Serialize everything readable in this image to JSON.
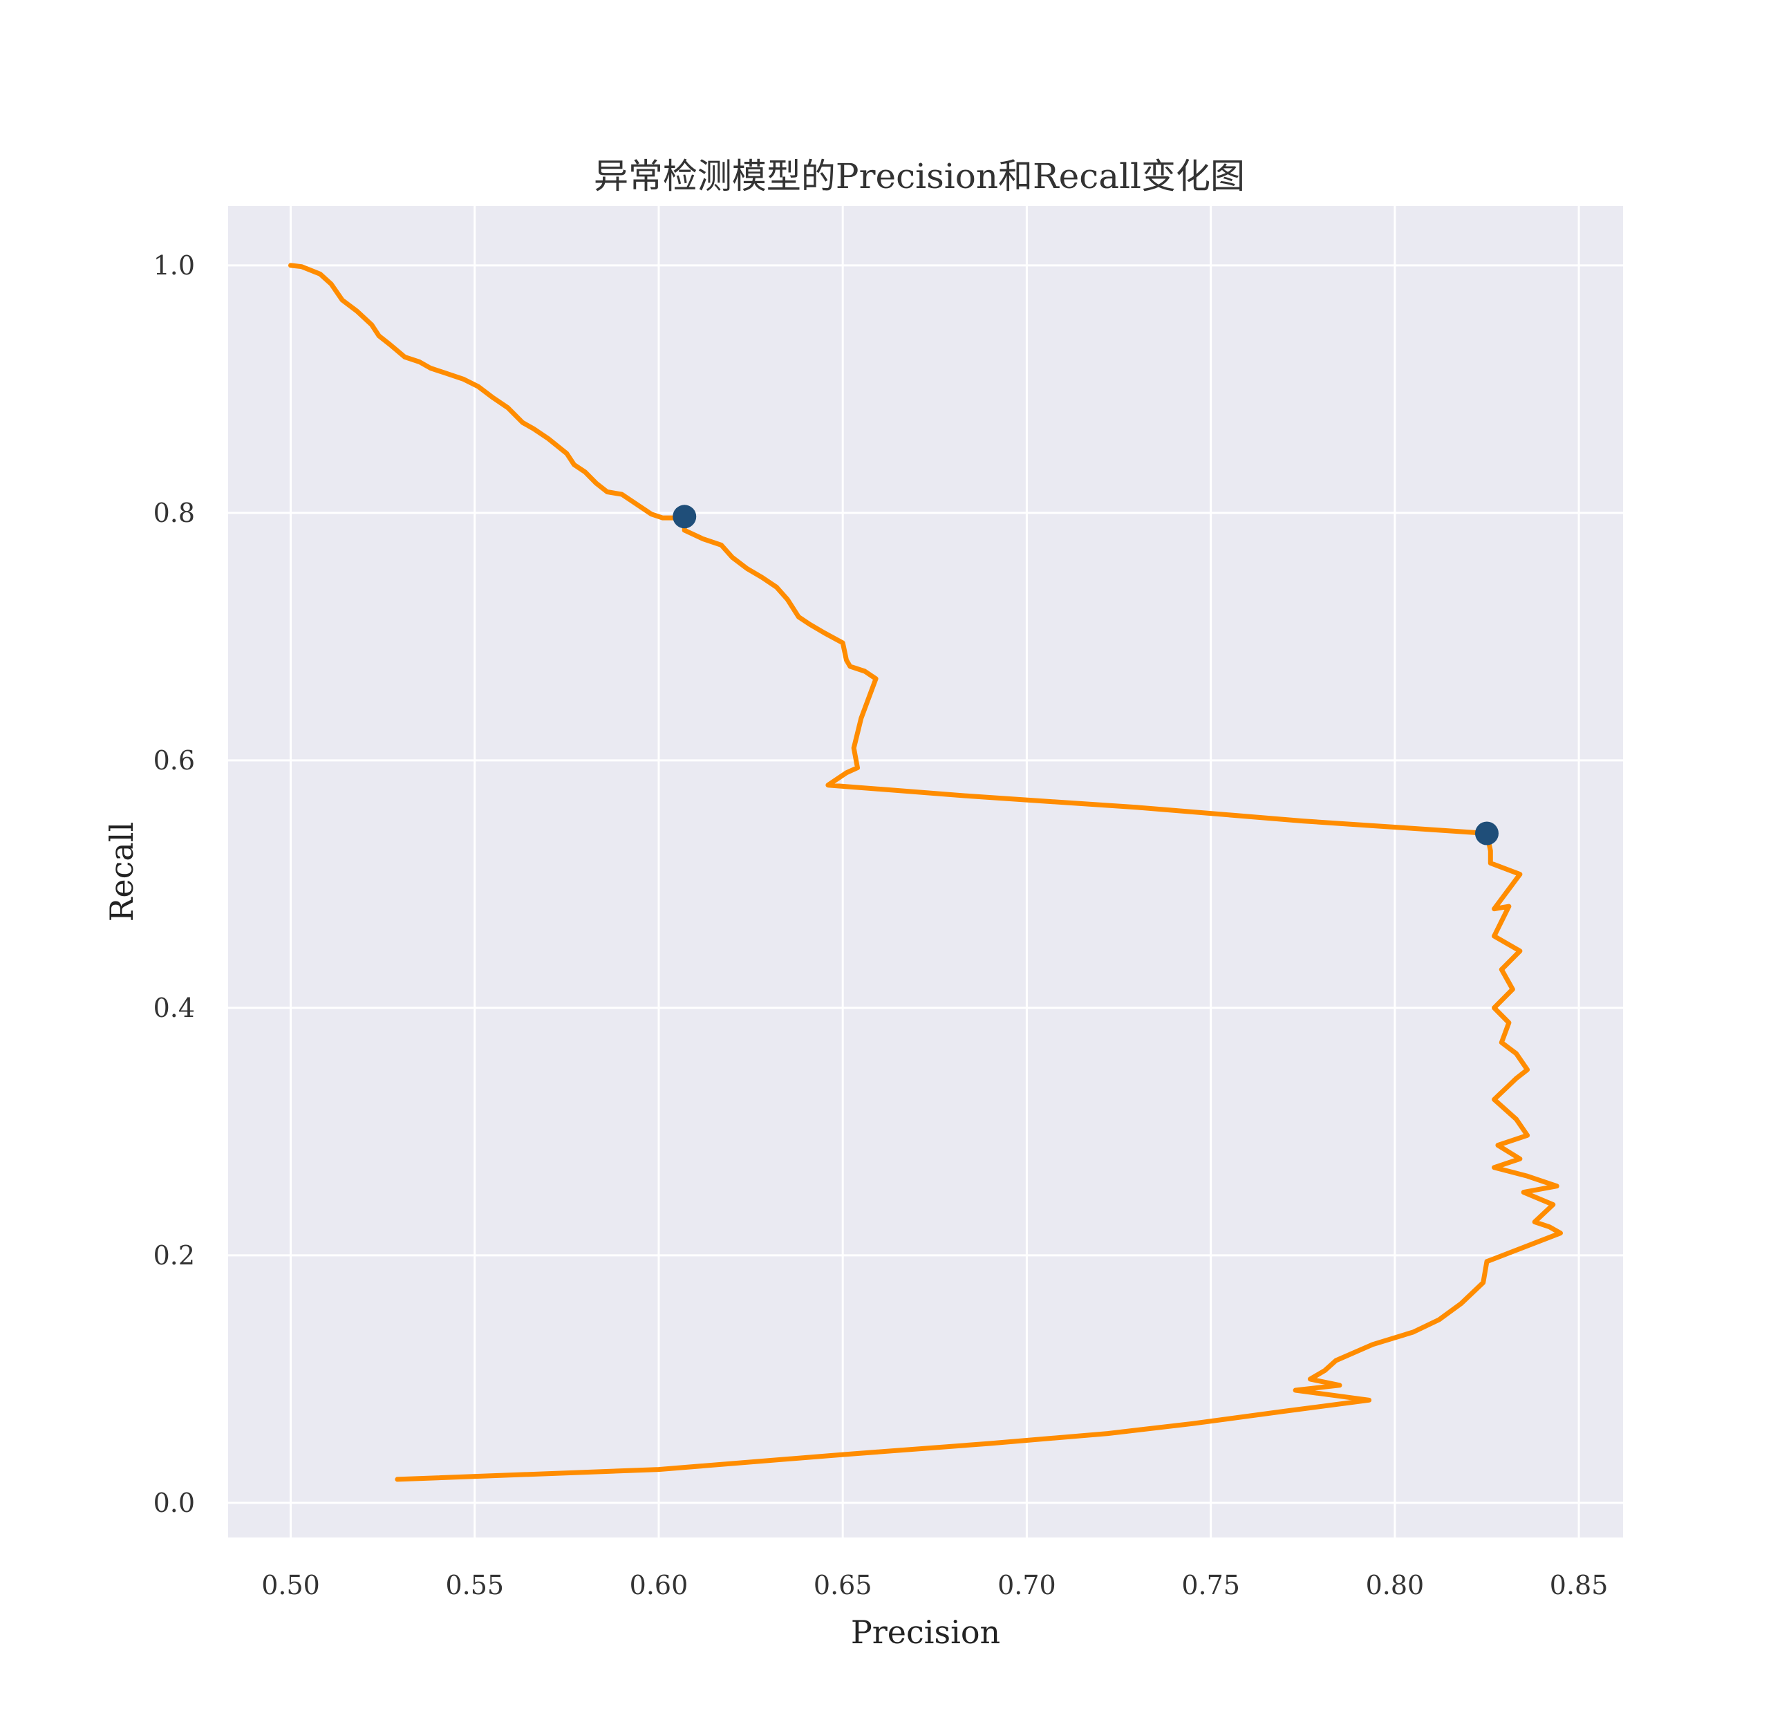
{
  "chart_data": {
    "type": "line",
    "title": "异常检测模型的Precision和Recall变化图",
    "xlabel": "Precision",
    "ylabel": "Recall",
    "xlim": [
      0.483,
      0.862
    ],
    "ylim": [
      -0.028,
      1.048
    ],
    "xticks": [
      0.5,
      0.55,
      0.6,
      0.65,
      0.7,
      0.75,
      0.8,
      0.85
    ],
    "xtick_labels": [
      "0.50",
      "0.55",
      "0.60",
      "0.65",
      "0.70",
      "0.75",
      "0.80",
      "0.85"
    ],
    "yticks": [
      0.0,
      0.2,
      0.4,
      0.6,
      0.8,
      1.0
    ],
    "ytick_labels": [
      "0.0",
      "0.2",
      "0.4",
      "0.6",
      "0.8",
      "1.0"
    ],
    "grid": true,
    "background": "#eaeaf2",
    "line_color": "#ff8c00",
    "marker_color": "#1f4e79",
    "series": [
      {
        "x": [
          0.5,
          0.503,
          0.508,
          0.511,
          0.514,
          0.518,
          0.522,
          0.524,
          0.527,
          0.531,
          0.535,
          0.538,
          0.542,
          0.547,
          0.551,
          0.555,
          0.559,
          0.563,
          0.566,
          0.57,
          0.575,
          0.577,
          0.58,
          0.583,
          0.586,
          0.59,
          0.594,
          0.598,
          0.601,
          0.604,
          0.607,
          0.607,
          0.612,
          0.617,
          0.62,
          0.624,
          0.628,
          0.632,
          0.635,
          0.638,
          0.641,
          0.645,
          0.65,
          0.651,
          0.652,
          0.656,
          0.659,
          0.655,
          0.653,
          0.654,
          0.651,
          0.646,
          0.685,
          0.73,
          0.775,
          0.825,
          0.826,
          0.826,
          0.834,
          0.827,
          0.831,
          0.827,
          0.834,
          0.829,
          0.832,
          0.827,
          0.831,
          0.829,
          0.833,
          0.836,
          0.833,
          0.827,
          0.833,
          0.836,
          0.828,
          0.834,
          0.827,
          0.836,
          0.844,
          0.835,
          0.843,
          0.838,
          0.842,
          0.845,
          0.825,
          0.824,
          0.818,
          0.812,
          0.805,
          0.794,
          0.784,
          0.781,
          0.777,
          0.785,
          0.773,
          0.793,
          0.77,
          0.745,
          0.722,
          0.69,
          0.65,
          0.6,
          0.529
        ],
        "y": [
          1.0,
          0.999,
          0.993,
          0.985,
          0.972,
          0.963,
          0.952,
          0.943,
          0.936,
          0.926,
          0.922,
          0.917,
          0.913,
          0.908,
          0.902,
          0.893,
          0.885,
          0.873,
          0.868,
          0.86,
          0.848,
          0.839,
          0.833,
          0.824,
          0.817,
          0.815,
          0.807,
          0.799,
          0.796,
          0.796,
          0.794,
          0.786,
          0.779,
          0.774,
          0.764,
          0.755,
          0.748,
          0.74,
          0.73,
          0.716,
          0.71,
          0.703,
          0.695,
          0.681,
          0.676,
          0.672,
          0.666,
          0.634,
          0.61,
          0.594,
          0.59,
          0.58,
          0.571,
          0.562,
          0.551,
          0.541,
          0.527,
          0.517,
          0.508,
          0.48,
          0.482,
          0.458,
          0.446,
          0.431,
          0.415,
          0.4,
          0.388,
          0.372,
          0.363,
          0.35,
          0.343,
          0.326,
          0.31,
          0.297,
          0.289,
          0.278,
          0.271,
          0.264,
          0.256,
          0.251,
          0.241,
          0.227,
          0.223,
          0.218,
          0.195,
          0.178,
          0.161,
          0.148,
          0.138,
          0.128,
          0.115,
          0.107,
          0.1,
          0.095,
          0.091,
          0.083,
          0.074,
          0.064,
          0.056,
          0.048,
          0.039,
          0.027,
          0.019
        ]
      }
    ],
    "markers": [
      {
        "x": 0.607,
        "y": 0.797
      },
      {
        "x": 0.825,
        "y": 0.541
      }
    ]
  }
}
